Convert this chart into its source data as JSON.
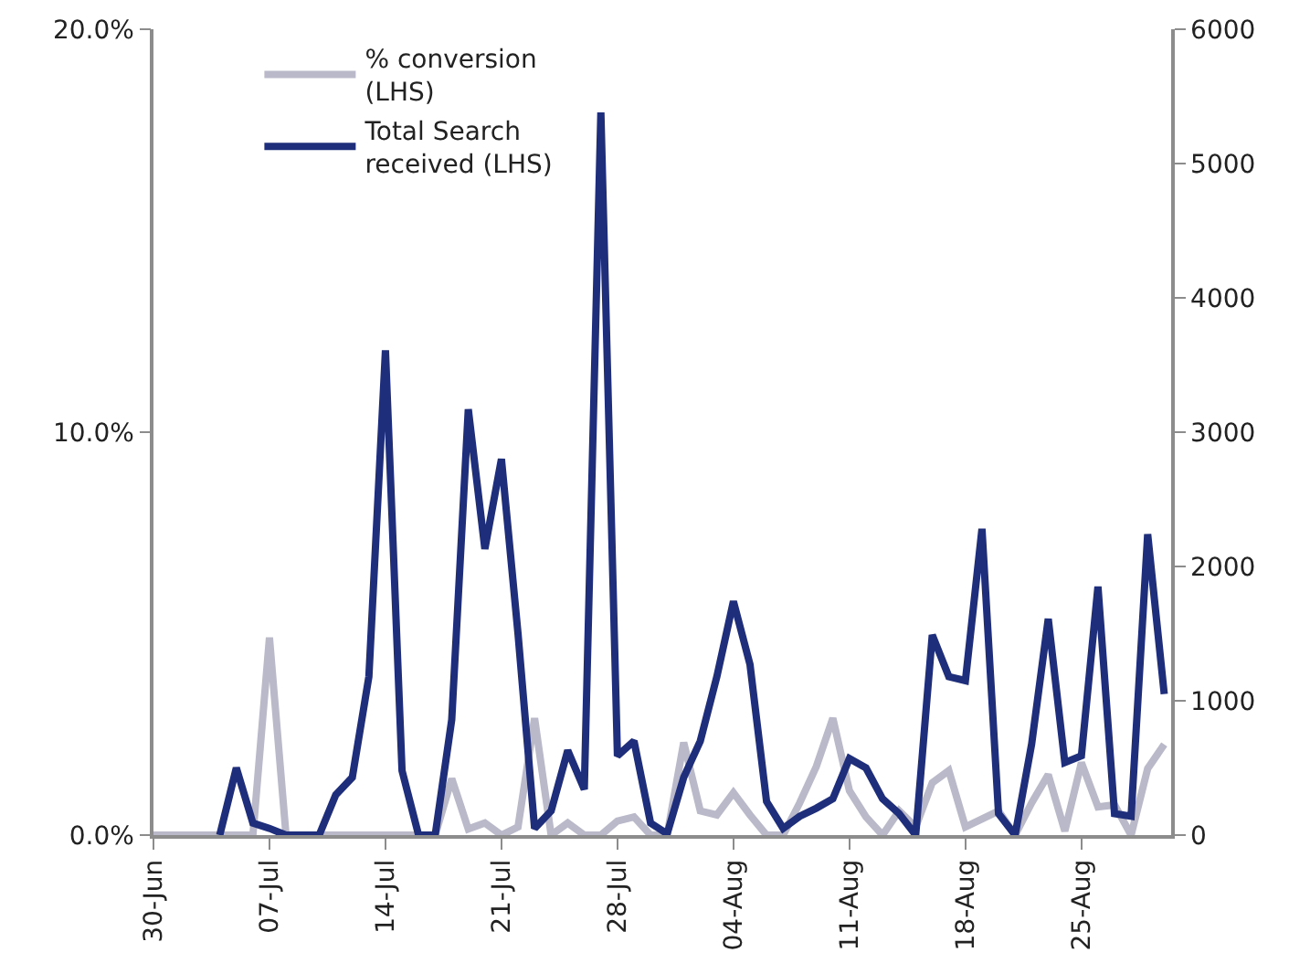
{
  "chart_data": {
    "type": "line",
    "x": [
      "--06-30",
      "--07-01",
      "--07-02",
      "--07-03",
      "--07-04",
      "--07-05",
      "--07-06",
      "--07-07",
      "--07-08",
      "--07-09",
      "--07-10",
      "--07-11",
      "--07-12",
      "--07-13",
      "--07-14",
      "--07-15",
      "--07-16",
      "--07-17",
      "--07-18",
      "--07-19",
      "--07-20",
      "--07-21",
      "--07-22",
      "--07-23",
      "--07-24",
      "--07-25",
      "--07-26",
      "--07-27",
      "--07-28",
      "--07-29",
      "--07-30",
      "--07-31",
      "--08-01",
      "--08-02",
      "--08-03",
      "--08-04",
      "--08-05",
      "--08-06",
      "--08-07",
      "--08-08",
      "--08-09",
      "--08-10",
      "--08-11",
      "--08-12",
      "--08-13",
      "--08-14",
      "--08-15",
      "--08-16",
      "--08-17",
      "--08-18",
      "--08-19",
      "--08-20",
      "--08-21",
      "--08-22",
      "--08-23",
      "--08-24",
      "--08-25",
      "--08-26",
      "--08-27",
      "--08-28",
      "--08-29",
      "--08-30"
    ],
    "series": [
      {
        "name": "% conversion (LHS)",
        "color": "#b9b9c9",
        "values": [
          0,
          0,
          0,
          0,
          0,
          0,
          0,
          4.9,
          0,
          0,
          0,
          0,
          0,
          0,
          0,
          0,
          0,
          0,
          1.4,
          0.15,
          0.3,
          0,
          0.2,
          2.9,
          0,
          0.3,
          0,
          0,
          0.35,
          0.45,
          0,
          0,
          2.3,
          0.6,
          0.5,
          1.05,
          0.5,
          0,
          0,
          0.8,
          1.7,
          2.9,
          1.1,
          0.45,
          0,
          0.6,
          0.2,
          1.3,
          1.6,
          0.2,
          0.4,
          0.6,
          0,
          0.8,
          1.5,
          0.1,
          1.8,
          0.7,
          0.75,
          0,
          1.65,
          2.25
        ]
      },
      {
        "name": "Total Search received (LHS)",
        "color": "#1f2e7a",
        "axis": "y2",
        "values": [
          null,
          null,
          null,
          null,
          0,
          500,
          90,
          50,
          0,
          0,
          0,
          300,
          430,
          1180,
          3610,
          480,
          0,
          0,
          860,
          3170,
          2130,
          2800,
          1500,
          50,
          180,
          630,
          340,
          5380,
          590,
          700,
          90,
          10,
          430,
          700,
          1180,
          1740,
          1270,
          250,
          50,
          140,
          200,
          270,
          570,
          500,
          270,
          160,
          0,
          1490,
          1180,
          1150,
          2280,
          160,
          0,
          680,
          1610,
          540,
          590,
          1850,
          160,
          140,
          2240,
          1050
        ]
      }
    ],
    "xlim": [
      "--06-30",
      "--08-30T10:00"
    ],
    "xticks": [
      {
        "value": "--06-30",
        "label": "30-Jun"
      },
      {
        "value": "--07-07",
        "label": "07-Jul"
      },
      {
        "value": "--07-14",
        "label": "14-Jul"
      },
      {
        "value": "--07-21",
        "label": "21-Jul"
      },
      {
        "value": "--07-28",
        "label": "28-Jul"
      },
      {
        "value": "--08-04",
        "label": "04-Aug"
      },
      {
        "value": "--08-11",
        "label": "11-Aug"
      },
      {
        "value": "--08-18",
        "label": "18-Aug"
      },
      {
        "value": "--08-25",
        "label": "25-Aug"
      }
    ],
    "ylim": [
      0,
      20
    ],
    "yticks": [
      {
        "value": 0,
        "label": "0.0%"
      },
      {
        "value": 10,
        "label": "10.0%"
      },
      {
        "value": 20,
        "label": "20.0%"
      }
    ],
    "y2lim": [
      0,
      6000
    ],
    "y2ticks": [
      0,
      1000,
      2000,
      3000,
      4000,
      5000,
      6000
    ],
    "grid": false,
    "legend": "top left",
    "marker": "none",
    "line_style": "solid"
  }
}
